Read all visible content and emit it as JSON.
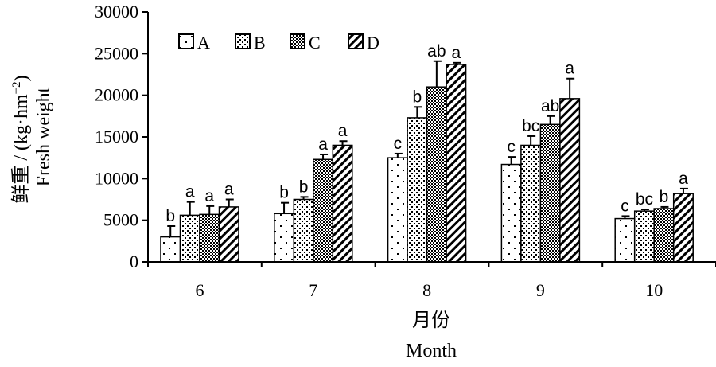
{
  "chart_data": {
    "type": "bar",
    "categories": [
      "6",
      "7",
      "8",
      "9",
      "10"
    ],
    "series": [
      {
        "name": "A",
        "values": [
          3000,
          5800,
          12500,
          11700,
          5200
        ],
        "errors": [
          1300,
          1300,
          500,
          900,
          300
        ],
        "letters": [
          "b",
          "b",
          "c",
          "c",
          "c"
        ]
      },
      {
        "name": "B",
        "values": [
          5600,
          7500,
          17300,
          14000,
          6100
        ],
        "errors": [
          1600,
          300,
          1300,
          1100,
          200
        ],
        "letters": [
          "a",
          "b",
          "b",
          "bc",
          "bc"
        ]
      },
      {
        "name": "C",
        "values": [
          5700,
          12300,
          21000,
          16500,
          6400
        ],
        "errors": [
          1000,
          600,
          3100,
          1000,
          200
        ],
        "letters": [
          "a",
          "a",
          "ab",
          "ab",
          "b"
        ]
      },
      {
        "name": "D",
        "values": [
          6600,
          14000,
          23700,
          19600,
          8200
        ],
        "errors": [
          900,
          500,
          200,
          2400,
          600
        ],
        "letters": [
          "a",
          "a",
          "a",
          "a",
          "a"
        ]
      }
    ],
    "title": "",
    "ylabel_cn": "鲜重 / (kg·hm",
    "ylabel_unit_sup": "−2",
    "ylabel_close": ")",
    "ylabel_en": "Fresh weight",
    "xlabel_cn": "月份",
    "xlabel_en": "Month",
    "ylim": [
      0,
      30000
    ],
    "yticks": [
      "0",
      "5000",
      "10000",
      "15000",
      "20000",
      "25000",
      "30000"
    ],
    "legend_position": "top-left",
    "grid": false
  }
}
